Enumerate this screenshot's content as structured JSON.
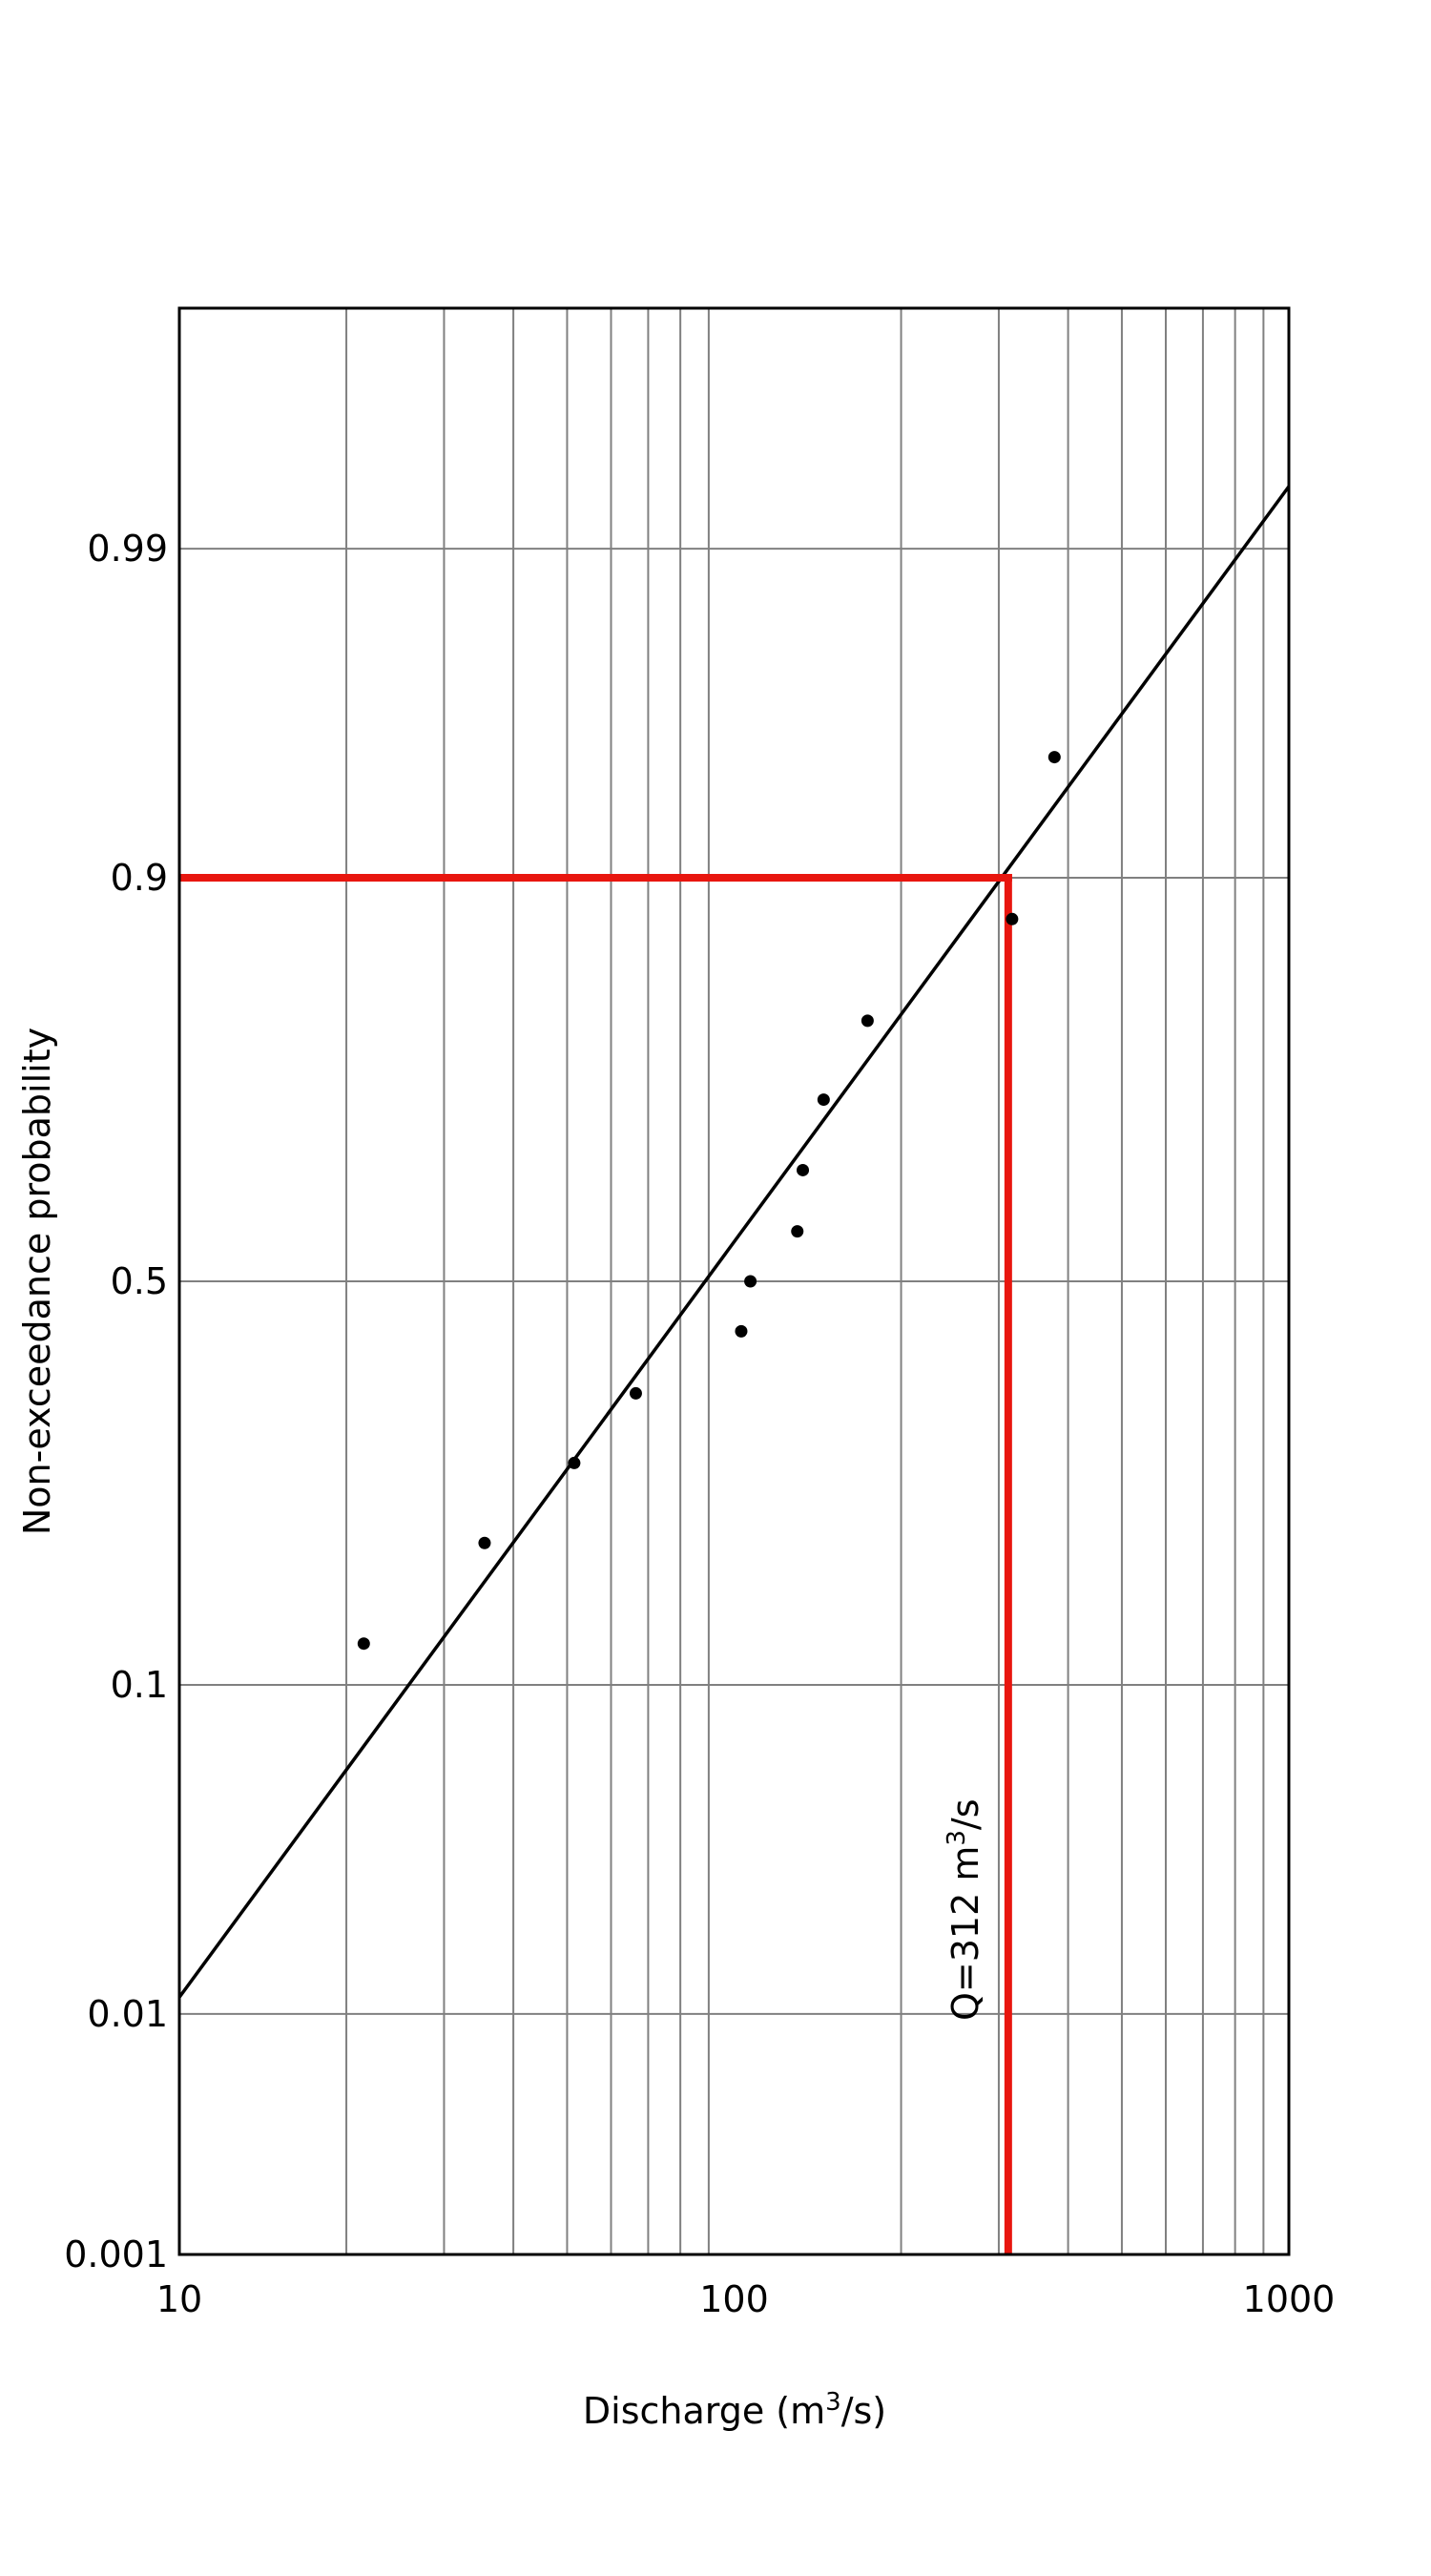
{
  "chart_data": {
    "type": "scatter",
    "title": "",
    "xlabel_prefix": "Discharge (m",
    "xlabel_sup": "3",
    "xlabel_suffix": "/s)",
    "ylabel": "Non-exceedance probability",
    "x_scale": "log",
    "y_scale": "normal-probability",
    "xlim": [
      10,
      1000
    ],
    "ylim": [
      0.001,
      0.999
    ],
    "x_ticks": [
      {
        "value": 10,
        "label": "10"
      },
      {
        "value": 100,
        "label": "100"
      },
      {
        "value": 1000,
        "label": "1000"
      }
    ],
    "y_ticks": [
      {
        "value": 0.001,
        "label": "0.001"
      },
      {
        "value": 0.01,
        "label": "0.01"
      },
      {
        "value": 0.1,
        "label": "0.1"
      },
      {
        "value": 0.5,
        "label": "0.5"
      },
      {
        "value": 0.9,
        "label": "0.9"
      },
      {
        "value": 0.99,
        "label": "0.99"
      }
    ],
    "grid": true,
    "points": [
      {
        "x": 21.5,
        "y": 0.125
      },
      {
        "x": 35.5,
        "y": 0.203
      },
      {
        "x": 51.5,
        "y": 0.282
      },
      {
        "x": 66.5,
        "y": 0.361
      },
      {
        "x": 103,
        "y": 0.437
      },
      {
        "x": 107,
        "y": 0.5
      },
      {
        "x": 130,
        "y": 0.563
      },
      {
        "x": 133,
        "y": 0.638
      },
      {
        "x": 145,
        "y": 0.718
      },
      {
        "x": 174,
        "y": 0.796
      },
      {
        "x": 317,
        "y": 0.875
      },
      {
        "x": 378,
        "y": 0.952
      }
    ],
    "fit_line": {
      "x": [
        10,
        1000
      ],
      "y": [
        0.0115,
        0.9942
      ]
    },
    "highlight": {
      "color": "#e8160f",
      "probability": 0.9,
      "discharge": 312,
      "label_prefix": "Q=312 m",
      "label_sup": "3",
      "label_suffix": "/s"
    },
    "colors": {
      "points": "#000000",
      "fit_line": "#000000",
      "grid": "#808080",
      "frame": "#000000"
    }
  }
}
